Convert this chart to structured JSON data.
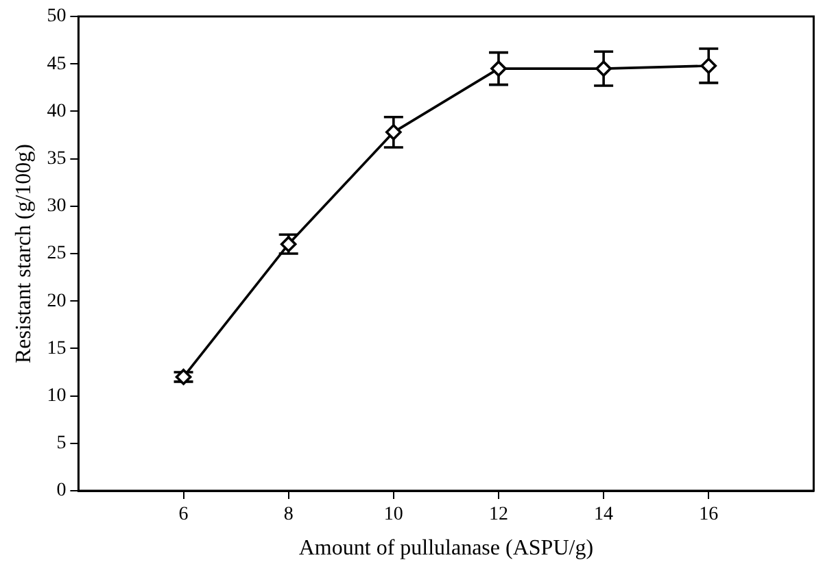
{
  "chart_data": {
    "type": "line",
    "xlabel": "Amount of pullulanase (ASPU/g)",
    "ylabel": "Resistant starch (g/100g)",
    "x": [
      6,
      8,
      10,
      12,
      14,
      16
    ],
    "series": [
      {
        "color": "#000000",
        "values": [
          12.0,
          26.0,
          37.8,
          44.5,
          44.5,
          44.8
        ],
        "errors": [
          0.5,
          1.0,
          1.6,
          1.7,
          1.8,
          1.8
        ]
      }
    ],
    "xlim": [
      4,
      18
    ],
    "xticks": [
      6,
      8,
      10,
      12,
      14,
      16
    ],
    "ylim": [
      0,
      50
    ],
    "yticks": [
      0,
      5,
      10,
      15,
      20,
      25,
      30,
      35,
      40,
      45,
      50
    ],
    "grid": false,
    "legend": false,
    "marker": "diamond",
    "line_style": "solid"
  }
}
